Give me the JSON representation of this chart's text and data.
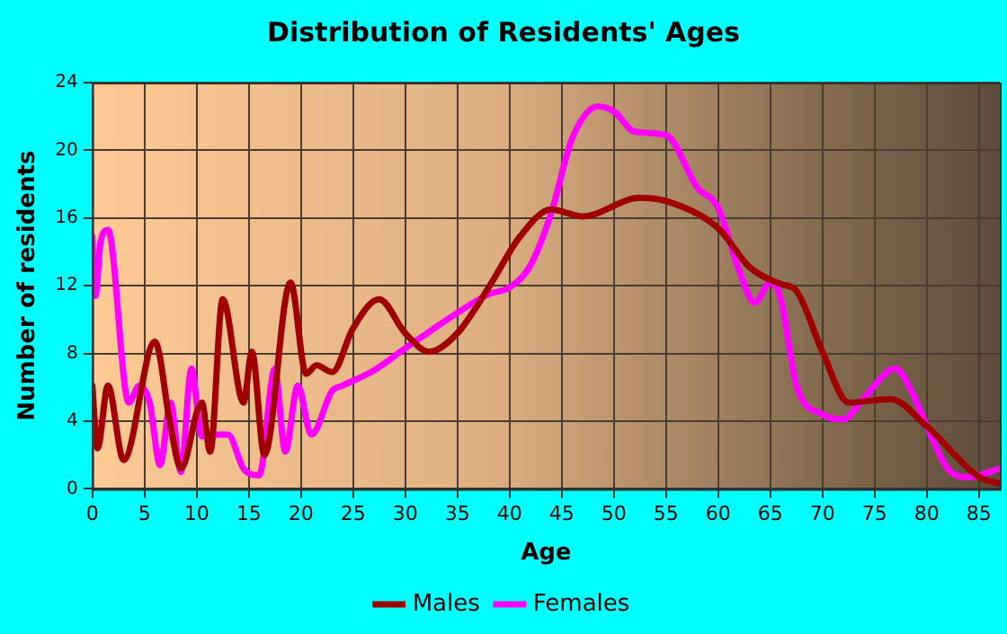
{
  "chart_data": {
    "type": "line",
    "title": "Distribution of Residents' Ages",
    "xlabel": "Age",
    "ylabel": "Number of residents",
    "xlim": [
      0,
      87
    ],
    "xticks": [
      0,
      5,
      10,
      15,
      20,
      25,
      30,
      35,
      40,
      45,
      50,
      55,
      60,
      65,
      70,
      75,
      80,
      85
    ],
    "ylim": [
      0,
      24
    ],
    "yticks": [
      0,
      4,
      8,
      12,
      16,
      20,
      24
    ],
    "grid": true,
    "legend": "bottom",
    "marker": "none",
    "line_style": "solid",
    "series": [
      {
        "name": "Males",
        "color": "#a00000",
        "x": [
          0,
          0.5,
          1.5,
          3,
          6,
          7.5,
          8.5,
          10.5,
          11.3,
          12.5,
          14.5,
          15.3,
          16.5,
          19,
          20.5,
          21.5,
          23,
          25,
          27.5,
          30,
          32.3,
          35,
          38,
          41,
          44,
          47,
          52.5,
          55,
          60,
          63,
          66,
          67.5,
          70,
          72.5,
          76.5,
          80,
          85,
          87
        ],
        "values": [
          6.1,
          2.4,
          6.1,
          1.7,
          8.7,
          3.7,
          1.2,
          5.1,
          2.2,
          11.2,
          5.1,
          8.1,
          2,
          12.2,
          6.8,
          7.3,
          6.9,
          9.5,
          11.2,
          9.2,
          8.1,
          9.2,
          11.9,
          14.9,
          16.5,
          16.1,
          17.2,
          17,
          15.4,
          13.1,
          12.1,
          11.7,
          8.1,
          5.1,
          5.3,
          3.7,
          0.7,
          0.3
        ]
      },
      {
        "name": "Females",
        "color": "#ff00ff",
        "x": [
          0,
          0.3,
          0.8,
          1.5,
          3.5,
          4.5,
          5.5,
          6.5,
          7.5,
          8.5,
          9.5,
          10.5,
          12,
          13,
          14.5,
          16,
          17.5,
          18.5,
          19.7,
          21,
          23,
          24,
          27,
          30,
          35,
          38,
          40,
          42,
          44,
          46,
          48.5,
          50,
          52,
          55,
          58,
          60,
          62,
          63.5,
          65,
          66,
          67.5,
          70,
          72,
          74,
          77,
          78.5,
          80,
          82,
          84,
          87
        ],
        "values": [
          14.9,
          11.4,
          14.6,
          15.3,
          5.1,
          6.1,
          5.1,
          1.4,
          5.1,
          1,
          7.1,
          3.1,
          3.2,
          3.2,
          1.2,
          0.8,
          7.1,
          2.2,
          6.1,
          3.2,
          5.8,
          6.1,
          7,
          8.3,
          10.4,
          11.5,
          11.9,
          13.2,
          16.3,
          20.7,
          22.6,
          22.3,
          21.1,
          20.9,
          17.8,
          16.6,
          12.9,
          11,
          12.2,
          11.2,
          6.1,
          4.4,
          4.1,
          5.4,
          7.1,
          5.8,
          3.7,
          1.2,
          0.7,
          1.2
        ]
      }
    ]
  }
}
